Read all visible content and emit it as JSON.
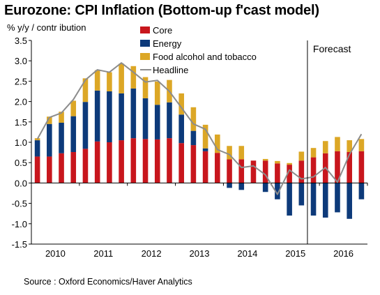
{
  "title": "Eurozone: CPI Inflation (Bottom-up f'cast model)",
  "ylabel": "% y/y / contr ibution",
  "source": "Source : Oxford Economics/Haver Analytics",
  "chart_data": {
    "type": "bar",
    "stacked": true,
    "title": "Eurozone: CPI Inflation (Bottom-up f'cast model)",
    "ylabel": "% y/y / contr ibution",
    "xlabel": "",
    "ylim": [
      -1.5,
      3.5
    ],
    "yticks": [
      "3.5",
      "3.0",
      "2.5",
      "2.0",
      "1.5",
      "1.0",
      "0.5",
      "0.0",
      "-0.5",
      "-1.0",
      "-1.5"
    ],
    "xticks": [
      "2010",
      "2011",
      "2012",
      "2013",
      "2014",
      "2015",
      "2016"
    ],
    "annotation": "Forecast",
    "forecast_start_index": 23,
    "grid": false,
    "legend_position": "top-center",
    "categories": [
      "2010Q1",
      "2010Q2",
      "2010Q3",
      "2010Q4",
      "2011Q1",
      "2011Q2",
      "2011Q3",
      "2011Q4",
      "2012Q1",
      "2012Q2",
      "2012Q3",
      "2012Q4",
      "2013Q1",
      "2013Q2",
      "2013Q3",
      "2013Q4",
      "2014Q1",
      "2014Q2",
      "2014Q3",
      "2014Q4",
      "2015Q1",
      "2015Q2",
      "2015Q3",
      "2015Q4",
      "2016Q1",
      "2016Q2",
      "2016Q3",
      "2016Q4"
    ],
    "series": [
      {
        "name": "Core",
        "kind": "bar",
        "color": "#c8161d",
        "values": [
          0.65,
          0.65,
          0.73,
          0.76,
          0.84,
          1.02,
          1.0,
          1.05,
          1.1,
          1.08,
          1.07,
          1.1,
          0.98,
          0.93,
          0.78,
          0.74,
          0.58,
          0.58,
          0.55,
          0.55,
          0.48,
          0.45,
          0.55,
          0.63,
          0.73,
          0.78,
          0.76,
          0.78
        ]
      },
      {
        "name": "Energy",
        "kind": "bar",
        "color": "#0d3a7a",
        "values": [
          0.4,
          0.8,
          0.75,
          0.88,
          1.15,
          1.25,
          1.25,
          1.15,
          1.22,
          1.0,
          0.85,
          0.88,
          0.7,
          0.35,
          0.07,
          0.0,
          -0.12,
          -0.17,
          0.0,
          -0.22,
          -0.4,
          -0.8,
          -0.55,
          -0.8,
          -0.85,
          -0.72,
          -0.88,
          -0.4
        ]
      },
      {
        "name": "Food alcohol and tobacco",
        "kind": "bar",
        "color": "#dca726",
        "values": [
          0.05,
          0.18,
          0.27,
          0.38,
          0.58,
          0.5,
          0.47,
          0.73,
          0.55,
          0.52,
          0.57,
          0.55,
          0.52,
          0.58,
          0.58,
          0.45,
          0.33,
          0.33,
          0.0,
          0.04,
          0.06,
          0.04,
          0.22,
          0.23,
          0.3,
          0.35,
          0.29,
          0.3
        ]
      },
      {
        "name": "Headline",
        "kind": "line",
        "color": "#8c8c8c",
        "values": [
          1.08,
          1.61,
          1.72,
          2.05,
          2.53,
          2.78,
          2.72,
          2.95,
          2.72,
          2.48,
          2.52,
          2.25,
          1.85,
          1.45,
          1.32,
          0.82,
          0.7,
          0.38,
          0.42,
          0.2,
          -0.28,
          0.32,
          0.1,
          0.15,
          0.38,
          0.02,
          0.7,
          1.2
        ]
      }
    ]
  }
}
